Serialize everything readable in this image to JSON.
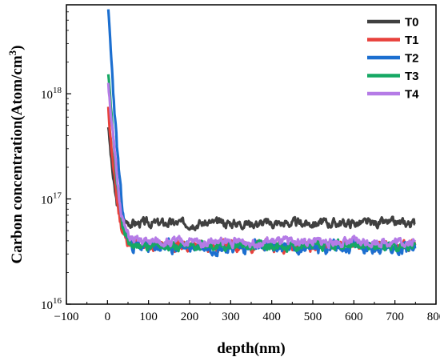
{
  "chart_data": {
    "type": "line",
    "xlabel": "depth(nm)",
    "ylabel_main": "Carbon concentration(Atom/cm",
    "ylabel_sup": "3",
    "ylabel_close": ")",
    "xlim": [
      -100,
      800
    ],
    "ylim": [
      1e+16,
      7e+18
    ],
    "yscale": "log",
    "x_ticks": [
      -100,
      0,
      100,
      200,
      300,
      400,
      500,
      600,
      700,
      800
    ],
    "x_tick_labels": [
      "−100",
      "0",
      "100",
      "200",
      "300",
      "400",
      "500",
      "600",
      "700",
      "800"
    ],
    "y_ticks": [
      1e+16,
      1e+17,
      1e+18
    ],
    "y_tick_labels": [
      {
        "base": "10",
        "exp": "16"
      },
      {
        "base": "10",
        "exp": "17"
      },
      {
        "base": "10",
        "exp": "18"
      }
    ],
    "grid": false,
    "legend": "top-right",
    "series": [
      {
        "name": "T0",
        "color": "#404040",
        "peak": 5e+17,
        "plateau": 5.9e+16,
        "decay": 8,
        "noise": 0.05,
        "seed": 3
      },
      {
        "name": "T1",
        "color": "#e8413c",
        "peak": 7e+17,
        "plateau": 3.6e+16,
        "decay": 9,
        "noise": 0.06,
        "seed": 11
      },
      {
        "name": "T2",
        "color": "#1c6fd0",
        "peak": 5.8e+18,
        "plateau": 3.5e+16,
        "decay": 7,
        "noise": 0.07,
        "seed": 23
      },
      {
        "name": "T3",
        "color": "#16a864",
        "peak": 1.5e+18,
        "plateau": 3.6e+16,
        "decay": 8,
        "noise": 0.05,
        "seed": 37
      },
      {
        "name": "T4",
        "color": "#b57be6",
        "peak": 1.3e+18,
        "plateau": 3.9e+16,
        "decay": 9,
        "noise": 0.05,
        "seed": 51
      }
    ],
    "x_start": 2,
    "x_end": 750
  }
}
